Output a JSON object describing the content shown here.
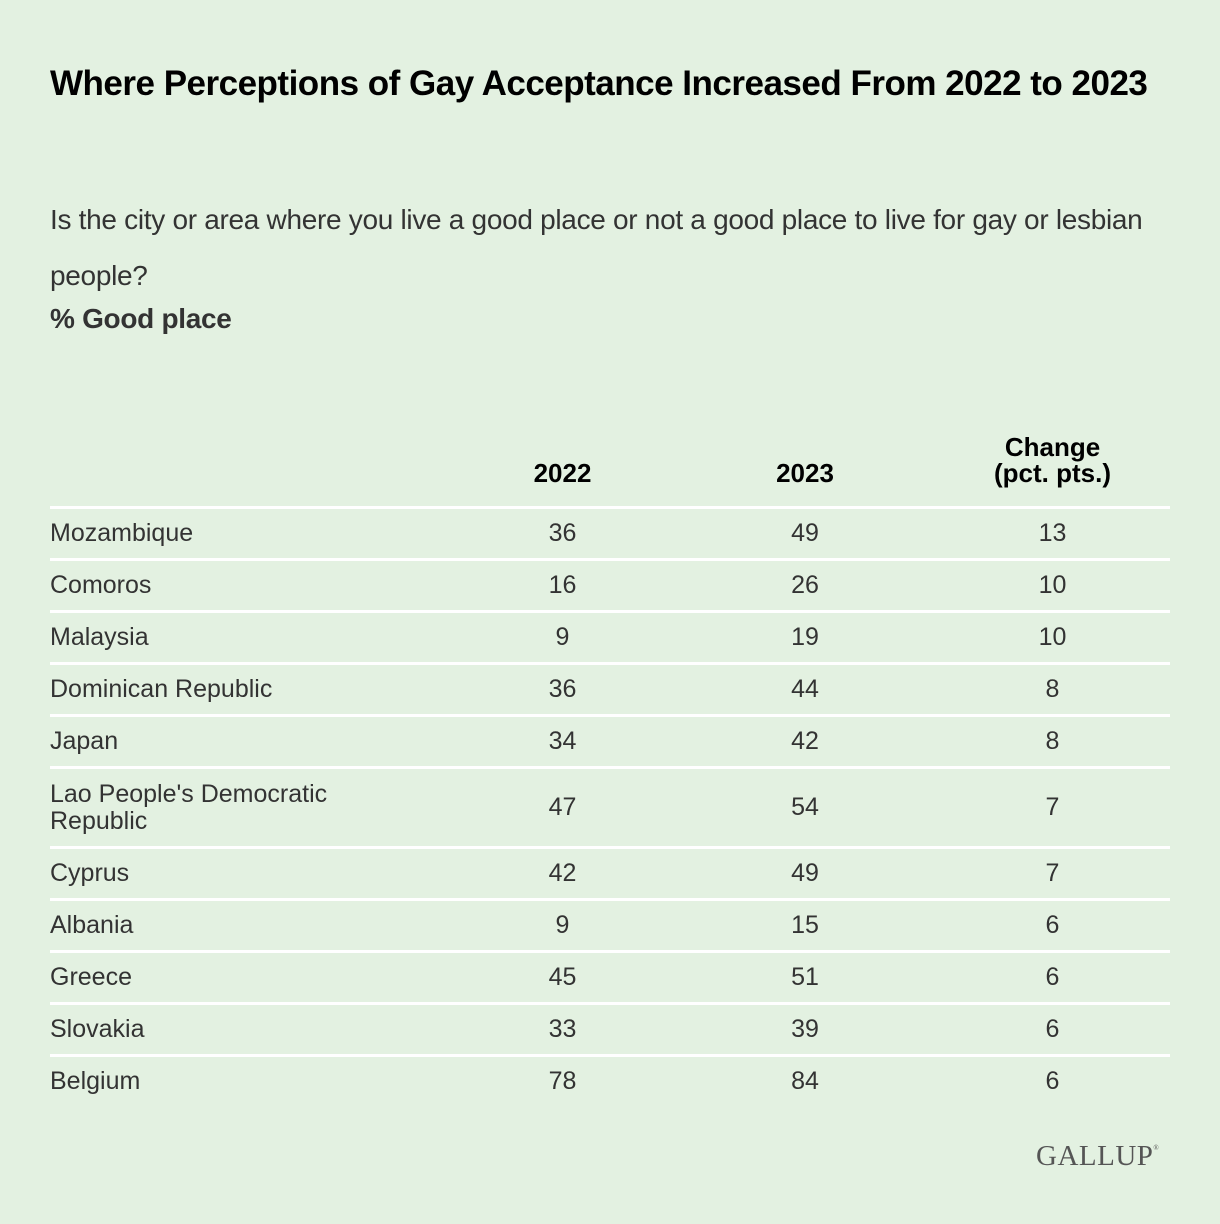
{
  "title": "Where Perceptions of Gay Acceptance Increased From 2022 to 2023",
  "subtitle": "Is the city or area where you live a good place or not a good place to live for gay or lesbian people?",
  "measure_label": "% Good place",
  "logo": "GALLUP",
  "logo_mark": "®",
  "colors": {
    "background": "#e3f1e1",
    "divider": "#ffffff",
    "header_text": "#000000",
    "body_text": "#333333"
  },
  "chart_data": {
    "type": "table",
    "title": "Where Perceptions of Gay Acceptance Increased From 2022 to 2023",
    "subtitle": "Is the city or area where you live a good place or not a good place to live for gay or lesbian people?",
    "measure": "% Good place",
    "columns": [
      "",
      "2022",
      "2023",
      "Change (pct. pts.)"
    ],
    "rows": [
      {
        "country": "Mozambique",
        "y2022": "36",
        "y2023": "49",
        "change": "13"
      },
      {
        "country": "Comoros",
        "y2022": "16",
        "y2023": "26",
        "change": "10"
      },
      {
        "country": "Malaysia",
        "y2022": "9",
        "y2023": "19",
        "change": "10"
      },
      {
        "country": "Dominican Republic",
        "y2022": "36",
        "y2023": "44",
        "change": "8"
      },
      {
        "country": "Japan",
        "y2022": "34",
        "y2023": "42",
        "change": "8"
      },
      {
        "country": "Lao People's Democratic Republic",
        "y2022": "47",
        "y2023": "54",
        "change": "7"
      },
      {
        "country": "Cyprus",
        "y2022": "42",
        "y2023": "49",
        "change": "7"
      },
      {
        "country": "Albania",
        "y2022": "9",
        "y2023": "15",
        "change": "6"
      },
      {
        "country": "Greece",
        "y2022": "45",
        "y2023": "51",
        "change": "6"
      },
      {
        "country": "Slovakia",
        "y2022": "33",
        "y2023": "39",
        "change": "6"
      },
      {
        "country": "Belgium",
        "y2022": "78",
        "y2023": "84",
        "change": "6"
      }
    ]
  }
}
